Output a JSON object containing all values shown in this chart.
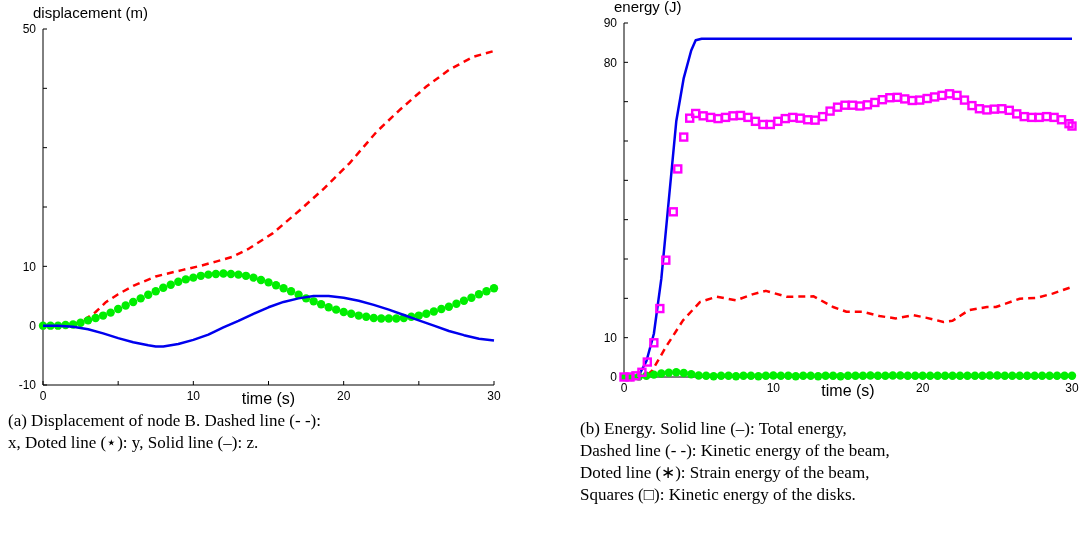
{
  "chart_data": [
    {
      "type": "line",
      "xlabel": "time (s)",
      "ylabel": "displacement (m)",
      "xlim": [
        0,
        30
      ],
      "ylim": [
        -10,
        50
      ],
      "xticks": [
        0,
        {
          "value": 5,
          "label": null
        },
        10,
        {
          "value": 15,
          "label": null
        },
        20,
        {
          "value": 25,
          "label": null
        },
        30
      ],
      "yticks": [
        -10,
        0,
        10,
        {
          "value": 20,
          "label": null
        },
        {
          "value": 30,
          "label": null
        },
        {
          "value": 40,
          "label": null
        },
        50
      ],
      "annotations": [
        "(a) Displacement of node B. Dashed line (- -): x, Doted line (⋆): y, Solid line (–): z."
      ],
      "series": [
        {
          "color": "#ff0000",
          "line_style": "dashed",
          "x": [
            2,
            2.6,
            3.5,
            4.2,
            5,
            6,
            7.5,
            9.3,
            10.5,
            11.5,
            12.6,
            13.7,
            15.3,
            17.1,
            18.6,
            20.4,
            22.2,
            23.7,
            25.5,
            27,
            28.6,
            30
          ],
          "values": [
            0.2,
            0.7,
            2.3,
            4,
            5.3,
            6.7,
            8.3,
            9.4,
            10.1,
            10.8,
            11.6,
            13,
            15.6,
            19.5,
            22.9,
            27.4,
            32.7,
            36.3,
            40.3,
            43.1,
            45.3,
            46.3
          ]
        },
        {
          "type": "scatter",
          "color": "#00ee00",
          "marker": "circle",
          "x": [
            0,
            0.5,
            1,
            1.5,
            2,
            2.5,
            3,
            3.5,
            4,
            4.5,
            5,
            5.5,
            6,
            6.5,
            7,
            7.5,
            8,
            8.5,
            9,
            9.5,
            10,
            10.5,
            11,
            11.5,
            12,
            12.5,
            13,
            13.5,
            14,
            14.5,
            15,
            15.5,
            16,
            16.5,
            17,
            17.5,
            18,
            18.5,
            19,
            19.5,
            20,
            20.5,
            21,
            21.5,
            22,
            22.5,
            23,
            23.5,
            24,
            24.5,
            25,
            25.5,
            26,
            26.5,
            27,
            27.5,
            28,
            28.5,
            29,
            29.5,
            30
          ],
          "values": [
            0,
            0,
            0,
            0.1,
            0.2,
            0.5,
            0.9,
            1.3,
            1.7,
            2.2,
            2.8,
            3.4,
            4,
            4.6,
            5.2,
            5.8,
            6.4,
            6.9,
            7.4,
            7.8,
            8.1,
            8.4,
            8.6,
            8.7,
            8.8,
            8.7,
            8.6,
            8.4,
            8.1,
            7.7,
            7.3,
            6.8,
            6.3,
            5.8,
            5.2,
            4.6,
            4.1,
            3.6,
            3.1,
            2.7,
            2.3,
            2,
            1.7,
            1.5,
            1.3,
            1.2,
            1.2,
            1.2,
            1.3,
            1.5,
            1.7,
            2,
            2.4,
            2.8,
            3.2,
            3.7,
            4.2,
            4.7,
            5.3,
            5.8,
            6.3
          ]
        },
        {
          "color": "#0000ee",
          "line_style": "solid",
          "x": [
            0,
            1,
            2,
            3,
            4,
            5,
            6,
            7,
            7.5,
            8,
            9,
            10,
            11,
            12,
            13,
            14,
            15,
            16,
            17,
            18,
            19,
            20,
            21,
            22,
            23,
            24,
            25,
            26,
            27,
            28,
            29,
            30
          ],
          "values": [
            0,
            0,
            -0.2,
            -0.6,
            -1.3,
            -2.1,
            -2.8,
            -3.3,
            -3.5,
            -3.5,
            -3.1,
            -2.4,
            -1.5,
            -0.3,
            0.8,
            2,
            3.1,
            4,
            4.6,
            5,
            5,
            4.7,
            4.2,
            3.5,
            2.7,
            1.8,
            0.9,
            0,
            -0.9,
            -1.6,
            -2.2,
            -2.5
          ]
        }
      ]
    },
    {
      "type": "line",
      "xlabel": "time (s)",
      "ylabel": "energy (J)",
      "xlim": [
        0,
        30
      ],
      "ylim": [
        0,
        90
      ],
      "xticks": [
        0,
        {
          "value": 5,
          "label": null
        },
        10,
        {
          "value": 15,
          "label": null
        },
        20,
        {
          "value": 25,
          "label": null
        },
        30
      ],
      "yticks": [
        0,
        10,
        {
          "value": 20,
          "label": null
        },
        {
          "value": 30,
          "label": null
        },
        {
          "value": 40,
          "label": null
        },
        {
          "value": 50,
          "label": null
        },
        {
          "value": 60,
          "label": null
        },
        {
          "value": 70,
          "label": null
        },
        80,
        90
      ],
      "annotations": [
        "(b) Energy. Solid line (–): Total energy, Dashed line (- -): Kinetic energy of the beam, Doted line (∗): Strain energy of the beam, Squares (□): Kinetic energy of the disks."
      ],
      "series": [
        {
          "color": "#0000ee",
          "line_style": "solid",
          "x": [
            0,
            0.5,
            1,
            1.5,
            2,
            2.5,
            3,
            3.5,
            4,
            4.5,
            4.8,
            5.2,
            30
          ],
          "values": [
            0,
            0,
            0.5,
            4,
            11,
            25,
            45,
            65,
            76,
            83,
            85.6,
            86,
            86
          ]
        },
        {
          "color": "#ff0000",
          "line_style": "dashed",
          "x": [
            0,
            1,
            1.5,
            1.9,
            2.8,
            3.95,
            5.1,
            6.2,
            7.5,
            8.6,
            9.5,
            10.9,
            12.7,
            14,
            14.9,
            16,
            17.1,
            18.2,
            19.4,
            20.2,
            21.4,
            22,
            23.1,
            24.3,
            24.9,
            26.5,
            27.6,
            28.7,
            30
          ],
          "values": [
            0,
            0,
            0.3,
            1.7,
            7.6,
            14.4,
            19.1,
            20.4,
            19.5,
            21,
            21.9,
            20.4,
            20.5,
            17.8,
            16.6,
            16.6,
            15.5,
            14.9,
            15.7,
            15.1,
            14,
            14.3,
            17,
            17.8,
            17.8,
            19.9,
            20.1,
            21.2,
            22.9
          ]
        },
        {
          "type": "scatter",
          "color": "#00ee00",
          "marker": "circle",
          "x": [
            0,
            0.5,
            1,
            1.5,
            2,
            2.5,
            3,
            3.5,
            4,
            4.5,
            5,
            5.5,
            6,
            6.5,
            7,
            7.5,
            8,
            8.5,
            9,
            9.5,
            10,
            10.5,
            11,
            11.5,
            12,
            12.5,
            13,
            13.5,
            14,
            14.5,
            15,
            15.5,
            16,
            16.5,
            17,
            17.5,
            18,
            18.5,
            19,
            19.5,
            20,
            20.5,
            21,
            21.5,
            22,
            22.5,
            23,
            23.5,
            24,
            24.5,
            25,
            25.5,
            26,
            26.5,
            27,
            27.5,
            28,
            28.5,
            29,
            29.5,
            30
          ],
          "values": [
            0,
            0,
            0.1,
            0.3,
            0.6,
            0.9,
            1.1,
            1.2,
            1,
            0.7,
            0.4,
            0.3,
            0.2,
            0.3,
            0.3,
            0.2,
            0.3,
            0.3,
            0.2,
            0.3,
            0.4,
            0.3,
            0.3,
            0.2,
            0.3,
            0.3,
            0.2,
            0.3,
            0.3,
            0.2,
            0.3,
            0.3,
            0.3,
            0.4,
            0.3,
            0.3,
            0.4,
            0.4,
            0.3,
            0.3,
            0.3,
            0.3,
            0.3,
            0.3,
            0.3,
            0.3,
            0.3,
            0.3,
            0.3,
            0.4,
            0.4,
            0.3,
            0.3,
            0.3,
            0.3,
            0.3,
            0.3,
            0.3,
            0.3,
            0.3,
            0.3
          ]
        },
        {
          "type": "scatter",
          "color": "#ff00ff",
          "marker": "square",
          "x": [
            0,
            0.4,
            0.8,
            1.2,
            1.56,
            2,
            2.4,
            2.8,
            3.3,
            3.6,
            4,
            4.4,
            4.8,
            5.3,
            5.8,
            6.3,
            6.8,
            7.3,
            7.8,
            8.3,
            8.8,
            9.3,
            9.8,
            10.3,
            10.8,
            11.3,
            11.8,
            12.3,
            12.8,
            13.3,
            13.8,
            14.3,
            14.8,
            15.3,
            15.8,
            16.3,
            16.8,
            17.3,
            17.8,
            18.3,
            18.8,
            19.3,
            19.8,
            20.3,
            20.8,
            21.3,
            21.8,
            22.3,
            22.8,
            23.3,
            23.8,
            24.3,
            24.8,
            25.3,
            25.8,
            26.3,
            26.8,
            27.3,
            27.8,
            28.3,
            28.8,
            29.3,
            29.8,
            30
          ],
          "values": [
            0,
            0,
            0.3,
            1.2,
            3.8,
            8.7,
            17.4,
            29.7,
            42,
            52.9,
            61,
            65.8,
            67,
            66.4,
            66,
            65.7,
            66,
            66.4,
            66.5,
            66,
            65,
            64.2,
            64.2,
            65,
            65.7,
            66,
            65.8,
            65.4,
            65.3,
            66.2,
            67.6,
            68.6,
            69.1,
            69.1,
            68.9,
            69.2,
            69.8,
            70.5,
            71,
            71.1,
            70.7,
            70.3,
            70.4,
            70.8,
            71.2,
            71.6,
            72,
            71.6,
            70.4,
            69,
            68.2,
            67.9,
            68.1,
            68.2,
            67.8,
            66.9,
            66.2,
            66,
            66,
            66.2,
            66,
            65.4,
            64.4,
            63.8
          ]
        }
      ]
    }
  ]
}
